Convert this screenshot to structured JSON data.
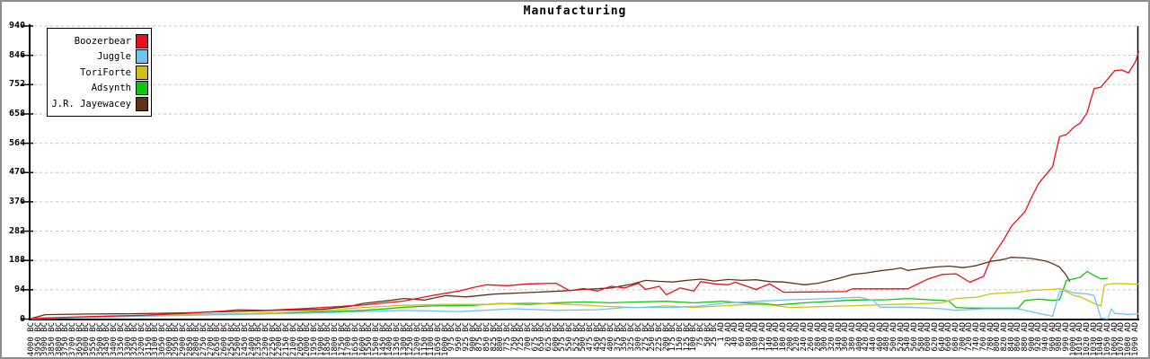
{
  "window": {
    "background": "#ffffff",
    "frame_color": "#8c8c8c"
  },
  "chart_data": {
    "type": "line",
    "title": "Manufacturing",
    "xlabel": "",
    "ylabel": "",
    "ylim": [
      0,
      940
    ],
    "y_ticks": [
      940,
      846,
      752,
      658,
      564,
      470,
      376,
      282,
      188,
      94,
      0
    ],
    "grid": "horizontal-dashed",
    "grid_color": "#c2c2c2",
    "axis_color": "#000000",
    "legend_position": "top-left",
    "x_labels": [
      "4000 BC",
      "3950 BC",
      "3900 BC",
      "3850 BC",
      "3800 BC",
      "3750 BC",
      "3700 BC",
      "3650 BC",
      "3600 BC",
      "3550 BC",
      "3500 BC",
      "3450 BC",
      "3400 BC",
      "3350 BC",
      "3300 BC",
      "3250 BC",
      "3200 BC",
      "3150 BC",
      "3100 BC",
      "3050 BC",
      "3000 BC",
      "2950 BC",
      "2900 BC",
      "2850 BC",
      "2800 BC",
      "2750 BC",
      "2700 BC",
      "2650 BC",
      "2600 BC",
      "2550 BC",
      "2500 BC",
      "2450 BC",
      "2400 BC",
      "2350 BC",
      "2300 BC",
      "2250 BC",
      "2200 BC",
      "2150 BC",
      "2100 BC",
      "2050 BC",
      "2000 BC",
      "1950 BC",
      "1900 BC",
      "1850 BC",
      "1800 BC",
      "1750 BC",
      "1700 BC",
      "1650 BC",
      "1600 BC",
      "1550 BC",
      "1500 BC",
      "1450 BC",
      "1400 BC",
      "1350 BC",
      "1300 BC",
      "1250 BC",
      "1200 BC",
      "1150 BC",
      "1100 BC",
      "1050 BC",
      "1000 BC",
      "975 BC",
      "950 BC",
      "925 BC",
      "900 BC",
      "875 BC",
      "850 BC",
      "825 BC",
      "800 BC",
      "775 BC",
      "750 BC",
      "725 BC",
      "700 BC",
      "675 BC",
      "650 BC",
      "625 BC",
      "600 BC",
      "575 BC",
      "550 BC",
      "525 BC",
      "500 BC",
      "475 BC",
      "450 BC",
      "425 BC",
      "400 BC",
      "375 BC",
      "350 BC",
      "325 BC",
      "300 BC",
      "275 BC",
      "250 BC",
      "225 BC",
      "200 BC",
      "175 BC",
      "150 BC",
      "125 BC",
      "100 BC",
      "75 BC",
      "50 BC",
      "25 BC",
      "1 AD",
      "20 AD",
      "40 AD",
      "60 AD",
      "80 AD",
      "100 AD",
      "120 AD",
      "140 AD",
      "160 AD",
      "180 AD",
      "200 AD",
      "220 AD",
      "240 AD",
      "260 AD",
      "280 AD",
      "300 AD",
      "320 AD",
      "340 AD",
      "360 AD",
      "380 AD",
      "400 AD",
      "420 AD",
      "440 AD",
      "460 AD",
      "480 AD",
      "500 AD",
      "520 AD",
      "540 AD",
      "560 AD",
      "580 AD",
      "600 AD",
      "620 AD",
      "640 AD",
      "660 AD",
      "680 AD",
      "700 AD",
      "720 AD",
      "740 AD",
      "760 AD",
      "780 AD",
      "800 AD",
      "820 AD",
      "840 AD",
      "860 AD",
      "880 AD",
      "900 AD",
      "920 AD",
      "940 AD",
      "960 AD",
      "980 AD",
      "990 AD",
      "1000 AD",
      "1010 AD",
      "1020 AD",
      "1030 AD",
      "1040 AD",
      "1050 AD",
      "1060 AD",
      "1070 AD",
      "1080 AD",
      "1090 AD"
    ],
    "x_points_note": "series points are [x_label_index, value] pairs estimated from the plot",
    "series": [
      {
        "name": "J.R. Jayewacey",
        "color": "#5e3312",
        "points": [
          [
            0,
            2
          ],
          [
            2,
            14
          ],
          [
            8,
            16
          ],
          [
            14,
            17
          ],
          [
            22,
            20
          ],
          [
            28,
            24
          ],
          [
            35,
            28
          ],
          [
            42,
            31
          ],
          [
            46,
            40
          ],
          [
            48,
            50
          ],
          [
            52,
            60
          ],
          [
            54,
            66
          ],
          [
            57,
            61
          ],
          [
            60,
            75
          ],
          [
            63,
            71
          ],
          [
            67,
            80
          ],
          [
            72,
            85
          ],
          [
            77,
            90
          ],
          [
            80,
            95
          ],
          [
            84,
            100
          ],
          [
            87,
            112
          ],
          [
            89,
            124
          ],
          [
            91,
            121
          ],
          [
            93,
            119
          ],
          [
            95,
            124
          ],
          [
            97,
            128
          ],
          [
            99,
            122
          ],
          [
            101,
            127
          ],
          [
            103,
            124
          ],
          [
            105,
            126
          ],
          [
            107,
            120
          ],
          [
            109,
            119
          ],
          [
            112,
            110
          ],
          [
            114,
            115
          ],
          [
            117,
            130
          ],
          [
            119,
            143
          ],
          [
            121,
            148
          ],
          [
            123,
            155
          ],
          [
            125,
            160
          ],
          [
            126,
            164
          ],
          [
            127,
            156
          ],
          [
            129,
            162
          ],
          [
            131,
            167
          ],
          [
            133,
            170
          ],
          [
            135,
            165
          ],
          [
            136,
            168
          ],
          [
            137,
            172
          ],
          [
            139,
            185
          ],
          [
            140,
            188
          ],
          [
            141,
            192
          ],
          [
            142,
            198
          ],
          [
            144,
            196
          ],
          [
            145,
            194
          ],
          [
            147,
            186
          ],
          [
            148,
            178
          ],
          [
            149,
            167
          ],
          [
            150,
            140
          ],
          [
            150.5,
            120
          ]
        ]
      },
      {
        "name": "Adsynth",
        "color": "#12c412",
        "points": [
          [
            0,
            1
          ],
          [
            5,
            4
          ],
          [
            12,
            8
          ],
          [
            22,
            15
          ],
          [
            32,
            18
          ],
          [
            40,
            22
          ],
          [
            48,
            28
          ],
          [
            52,
            34
          ],
          [
            54,
            38
          ],
          [
            58,
            42
          ],
          [
            64,
            44
          ],
          [
            68,
            50
          ],
          [
            72,
            47
          ],
          [
            76,
            52
          ],
          [
            80,
            55
          ],
          [
            84,
            52
          ],
          [
            88,
            55
          ],
          [
            92,
            57
          ],
          [
            96,
            52
          ],
          [
            100,
            57
          ],
          [
            103,
            52
          ],
          [
            106,
            50
          ],
          [
            108,
            45
          ],
          [
            112,
            52
          ],
          [
            116,
            57
          ],
          [
            119,
            61
          ],
          [
            124,
            62
          ],
          [
            127,
            66
          ],
          [
            130,
            62
          ],
          [
            132,
            60
          ],
          [
            133,
            57
          ],
          [
            134,
            37
          ],
          [
            136,
            35
          ],
          [
            140,
            35
          ],
          [
            143,
            35
          ],
          [
            144,
            60
          ],
          [
            146,
            64
          ],
          [
            148,
            60
          ],
          [
            149,
            62
          ],
          [
            150,
            124
          ],
          [
            151,
            129
          ],
          [
            152,
            134
          ],
          [
            153,
            153
          ],
          [
            154,
            140
          ],
          [
            155,
            129
          ],
          [
            156,
            131
          ]
        ]
      },
      {
        "name": "ToriForte",
        "color": "#cdc116",
        "points": [
          [
            0,
            1
          ],
          [
            6,
            5
          ],
          [
            12,
            10
          ],
          [
            22,
            15
          ],
          [
            35,
            20
          ],
          [
            44,
            30
          ],
          [
            48,
            37
          ],
          [
            54,
            44
          ],
          [
            60,
            47
          ],
          [
            66,
            47
          ],
          [
            72,
            52
          ],
          [
            78,
            47
          ],
          [
            84,
            40
          ],
          [
            88,
            37
          ],
          [
            92,
            42
          ],
          [
            96,
            37
          ],
          [
            100,
            42
          ],
          [
            104,
            47
          ],
          [
            107,
            45
          ],
          [
            110,
            37
          ],
          [
            118,
            42
          ],
          [
            125,
            47
          ],
          [
            130,
            50
          ],
          [
            132,
            52
          ],
          [
            133,
            60
          ],
          [
            134,
            66
          ],
          [
            137,
            70
          ],
          [
            139,
            81
          ],
          [
            143,
            86
          ],
          [
            145,
            92
          ],
          [
            148,
            95
          ],
          [
            149,
            98
          ],
          [
            150,
            88
          ],
          [
            151,
            76
          ],
          [
            152,
            71
          ],
          [
            153,
            61
          ],
          [
            154,
            50
          ],
          [
            155,
            42
          ],
          [
            155.5,
            108
          ],
          [
            156,
            112
          ],
          [
            157,
            114
          ],
          [
            159,
            113
          ],
          [
            160.5,
            112
          ]
        ]
      },
      {
        "name": "Juggle",
        "color": "#74c2f0",
        "points": [
          [
            0,
            1
          ],
          [
            6,
            4
          ],
          [
            12,
            7
          ],
          [
            20,
            11
          ],
          [
            30,
            15
          ],
          [
            42,
            20
          ],
          [
            48,
            24
          ],
          [
            54,
            28
          ],
          [
            62,
            24
          ],
          [
            70,
            33
          ],
          [
            76,
            28
          ],
          [
            82,
            30
          ],
          [
            86,
            37
          ],
          [
            93,
            37
          ],
          [
            97,
            42
          ],
          [
            101,
            52
          ],
          [
            105,
            57
          ],
          [
            108,
            60
          ],
          [
            110,
            62
          ],
          [
            115,
            65
          ],
          [
            120,
            70
          ],
          [
            122,
            60
          ],
          [
            123,
            38
          ],
          [
            127,
            38
          ],
          [
            130,
            35
          ],
          [
            132,
            33
          ],
          [
            134,
            28
          ],
          [
            138,
            33
          ],
          [
            143,
            33
          ],
          [
            146,
            18
          ],
          [
            148,
            9
          ],
          [
            149,
            88
          ],
          [
            150,
            92
          ],
          [
            151,
            84
          ],
          [
            153,
            81
          ],
          [
            154,
            76
          ],
          [
            155,
            3
          ],
          [
            156,
            1
          ],
          [
            156.5,
            33
          ],
          [
            157,
            18
          ],
          [
            159,
            15
          ],
          [
            160.5,
            17
          ]
        ]
      },
      {
        "name": "Boozerbear",
        "color": "#e8101c",
        "points": [
          [
            0,
            2
          ],
          [
            4,
            5
          ],
          [
            9,
            8
          ],
          [
            16,
            12
          ],
          [
            22,
            18
          ],
          [
            28,
            26
          ],
          [
            30,
            30
          ],
          [
            34,
            28
          ],
          [
            40,
            34
          ],
          [
            48,
            45
          ],
          [
            54,
            58
          ],
          [
            58,
            75
          ],
          [
            62,
            90
          ],
          [
            64,
            101
          ],
          [
            66,
            110
          ],
          [
            69,
            107
          ],
          [
            72,
            113
          ],
          [
            76,
            115
          ],
          [
            78,
            91
          ],
          [
            80,
            98
          ],
          [
            82,
            90
          ],
          [
            84,
            105
          ],
          [
            86,
            100
          ],
          [
            88,
            115
          ],
          [
            89,
            95
          ],
          [
            91,
            105
          ],
          [
            92,
            78
          ],
          [
            94,
            100
          ],
          [
            96,
            90
          ],
          [
            97,
            120
          ],
          [
            99,
            113
          ],
          [
            101,
            110
          ],
          [
            102,
            118
          ],
          [
            105,
            95
          ],
          [
            107,
            113
          ],
          [
            109,
            86
          ],
          [
            113,
            87
          ],
          [
            118,
            88
          ],
          [
            119,
            97
          ],
          [
            127,
            97
          ],
          [
            130,
            129
          ],
          [
            132,
            143
          ],
          [
            134,
            145
          ],
          [
            136,
            118
          ],
          [
            138,
            137
          ],
          [
            139,
            191
          ],
          [
            141,
            258
          ],
          [
            142,
            297
          ],
          [
            144,
            345
          ],
          [
            145,
            393
          ],
          [
            146,
            436
          ],
          [
            148,
            489
          ],
          [
            149,
            585
          ],
          [
            150,
            592
          ],
          [
            151,
            614
          ],
          [
            152,
            629
          ],
          [
            153,
            662
          ],
          [
            154,
            739
          ],
          [
            155,
            744
          ],
          [
            157,
            797
          ],
          [
            158,
            799
          ],
          [
            159,
            790
          ],
          [
            160,
            825
          ],
          [
            160.5,
            860
          ]
        ]
      }
    ],
    "legend_order": [
      "Boozerbear",
      "Juggle",
      "ToriForte",
      "Adsynth",
      "J.R. Jayewacey"
    ]
  }
}
